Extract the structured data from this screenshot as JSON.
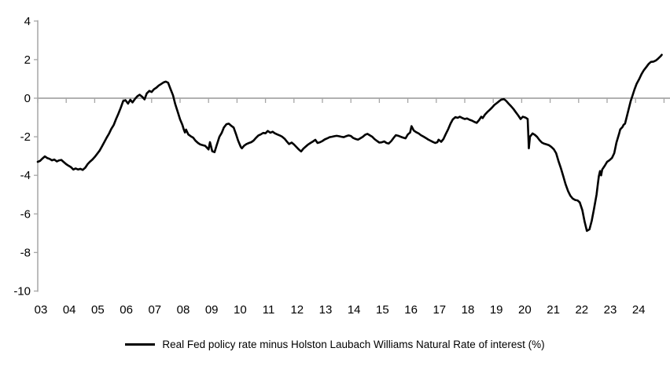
{
  "chart_data": {
    "type": "line",
    "title": "",
    "legend_position": "bottom",
    "grid": "zero-line-only",
    "axis_color": "#a6a6a6",
    "text_color": "#000000",
    "background_color": "#ffffff",
    "x_axis": {
      "tick_labels": [
        "03",
        "04",
        "05",
        "06",
        "07",
        "08",
        "09",
        "10",
        "11",
        "12",
        "13",
        "14",
        "15",
        "16",
        "17",
        "18",
        "19",
        "20",
        "21",
        "22",
        "23",
        "24"
      ],
      "tick_years": [
        2003,
        2004,
        2005,
        2006,
        2007,
        2008,
        2009,
        2010,
        2011,
        2012,
        2013,
        2014,
        2015,
        2016,
        2017,
        2018,
        2019,
        2020,
        2021,
        2022,
        2023,
        2024
      ],
      "range": [
        2003,
        2025.2
      ]
    },
    "y_axis": {
      "ticks": [
        4,
        2,
        0,
        -2,
        -4,
        -6,
        -8,
        -10
      ],
      "range": [
        -10,
        4
      ]
    },
    "series": [
      {
        "name": "Real Fed policy rate minus Holston Laubach Williams Natural Rate of interest (%)",
        "color": "#000000",
        "points": [
          [
            2003.0,
            -3.3
          ],
          [
            2003.08,
            -3.25
          ],
          [
            2003.17,
            -3.12
          ],
          [
            2003.25,
            -3.02
          ],
          [
            2003.33,
            -3.1
          ],
          [
            2003.42,
            -3.15
          ],
          [
            2003.5,
            -3.22
          ],
          [
            2003.58,
            -3.18
          ],
          [
            2003.67,
            -3.28
          ],
          [
            2003.75,
            -3.22
          ],
          [
            2003.83,
            -3.2
          ],
          [
            2003.92,
            -3.32
          ],
          [
            2004.0,
            -3.42
          ],
          [
            2004.08,
            -3.5
          ],
          [
            2004.17,
            -3.58
          ],
          [
            2004.25,
            -3.7
          ],
          [
            2004.33,
            -3.64
          ],
          [
            2004.42,
            -3.7
          ],
          [
            2004.5,
            -3.66
          ],
          [
            2004.58,
            -3.72
          ],
          [
            2004.67,
            -3.6
          ],
          [
            2004.75,
            -3.42
          ],
          [
            2004.83,
            -3.3
          ],
          [
            2004.92,
            -3.18
          ],
          [
            2005.0,
            -3.05
          ],
          [
            2005.08,
            -2.9
          ],
          [
            2005.17,
            -2.72
          ],
          [
            2005.25,
            -2.52
          ],
          [
            2005.33,
            -2.3
          ],
          [
            2005.42,
            -2.05
          ],
          [
            2005.5,
            -1.85
          ],
          [
            2005.58,
            -1.6
          ],
          [
            2005.67,
            -1.38
          ],
          [
            2005.75,
            -1.08
          ],
          [
            2005.83,
            -0.82
          ],
          [
            2005.92,
            -0.48
          ],
          [
            2006.0,
            -0.15
          ],
          [
            2006.08,
            -0.1
          ],
          [
            2006.17,
            -0.28
          ],
          [
            2006.25,
            -0.08
          ],
          [
            2006.33,
            -0.22
          ],
          [
            2006.42,
            -0.03
          ],
          [
            2006.5,
            0.1
          ],
          [
            2006.58,
            0.18
          ],
          [
            2006.67,
            0.07
          ],
          [
            2006.75,
            -0.06
          ],
          [
            2006.83,
            0.25
          ],
          [
            2006.92,
            0.38
          ],
          [
            2007.0,
            0.32
          ],
          [
            2007.08,
            0.46
          ],
          [
            2007.17,
            0.55
          ],
          [
            2007.25,
            0.66
          ],
          [
            2007.33,
            0.73
          ],
          [
            2007.42,
            0.82
          ],
          [
            2007.5,
            0.86
          ],
          [
            2007.58,
            0.8
          ],
          [
            2007.67,
            0.45
          ],
          [
            2007.75,
            0.15
          ],
          [
            2007.83,
            -0.3
          ],
          [
            2007.92,
            -0.72
          ],
          [
            2008.0,
            -1.1
          ],
          [
            2008.08,
            -1.38
          ],
          [
            2008.13,
            -1.62
          ],
          [
            2008.17,
            -1.78
          ],
          [
            2008.21,
            -1.63
          ],
          [
            2008.29,
            -1.88
          ],
          [
            2008.38,
            -1.98
          ],
          [
            2008.46,
            -2.05
          ],
          [
            2008.54,
            -2.2
          ],
          [
            2008.63,
            -2.32
          ],
          [
            2008.71,
            -2.4
          ],
          [
            2008.79,
            -2.43
          ],
          [
            2008.88,
            -2.47
          ],
          [
            2008.96,
            -2.6
          ],
          [
            2009.0,
            -2.66
          ],
          [
            2009.05,
            -2.28
          ],
          [
            2009.13,
            -2.75
          ],
          [
            2009.21,
            -2.8
          ],
          [
            2009.29,
            -2.42
          ],
          [
            2009.38,
            -2.0
          ],
          [
            2009.46,
            -1.8
          ],
          [
            2009.54,
            -1.52
          ],
          [
            2009.63,
            -1.35
          ],
          [
            2009.71,
            -1.32
          ],
          [
            2009.79,
            -1.42
          ],
          [
            2009.88,
            -1.52
          ],
          [
            2009.96,
            -1.85
          ],
          [
            2010.04,
            -2.2
          ],
          [
            2010.13,
            -2.52
          ],
          [
            2010.17,
            -2.6
          ],
          [
            2010.25,
            -2.46
          ],
          [
            2010.33,
            -2.38
          ],
          [
            2010.42,
            -2.32
          ],
          [
            2010.5,
            -2.28
          ],
          [
            2010.58,
            -2.2
          ],
          [
            2010.67,
            -2.05
          ],
          [
            2010.75,
            -1.93
          ],
          [
            2010.83,
            -1.88
          ],
          [
            2010.92,
            -1.8
          ],
          [
            2011.0,
            -1.82
          ],
          [
            2011.08,
            -1.7
          ],
          [
            2011.17,
            -1.79
          ],
          [
            2011.25,
            -1.74
          ],
          [
            2011.33,
            -1.82
          ],
          [
            2011.42,
            -1.88
          ],
          [
            2011.5,
            -1.93
          ],
          [
            2011.58,
            -1.99
          ],
          [
            2011.67,
            -2.1
          ],
          [
            2011.75,
            -2.25
          ],
          [
            2011.83,
            -2.38
          ],
          [
            2011.92,
            -2.3
          ],
          [
            2012.0,
            -2.4
          ],
          [
            2012.08,
            -2.52
          ],
          [
            2012.17,
            -2.66
          ],
          [
            2012.25,
            -2.76
          ],
          [
            2012.33,
            -2.62
          ],
          [
            2012.42,
            -2.5
          ],
          [
            2012.5,
            -2.4
          ],
          [
            2012.58,
            -2.32
          ],
          [
            2012.67,
            -2.24
          ],
          [
            2012.75,
            -2.16
          ],
          [
            2012.83,
            -2.32
          ],
          [
            2012.92,
            -2.28
          ],
          [
            2013.0,
            -2.22
          ],
          [
            2013.08,
            -2.14
          ],
          [
            2013.17,
            -2.08
          ],
          [
            2013.25,
            -2.02
          ],
          [
            2013.33,
            -2.0
          ],
          [
            2013.42,
            -1.97
          ],
          [
            2013.5,
            -1.95
          ],
          [
            2013.58,
            -1.97
          ],
          [
            2013.67,
            -2.0
          ],
          [
            2013.75,
            -2.02
          ],
          [
            2013.83,
            -1.97
          ],
          [
            2013.92,
            -1.93
          ],
          [
            2014.0,
            -1.96
          ],
          [
            2014.08,
            -2.06
          ],
          [
            2014.17,
            -2.12
          ],
          [
            2014.25,
            -2.15
          ],
          [
            2014.33,
            -2.08
          ],
          [
            2014.42,
            -2.0
          ],
          [
            2014.5,
            -1.9
          ],
          [
            2014.58,
            -1.85
          ],
          [
            2014.67,
            -1.93
          ],
          [
            2014.75,
            -2.0
          ],
          [
            2014.83,
            -2.12
          ],
          [
            2014.92,
            -2.22
          ],
          [
            2015.0,
            -2.3
          ],
          [
            2015.08,
            -2.29
          ],
          [
            2015.17,
            -2.24
          ],
          [
            2015.25,
            -2.32
          ],
          [
            2015.33,
            -2.35
          ],
          [
            2015.42,
            -2.22
          ],
          [
            2015.5,
            -2.06
          ],
          [
            2015.58,
            -1.92
          ],
          [
            2015.67,
            -1.95
          ],
          [
            2015.75,
            -2.0
          ],
          [
            2015.83,
            -2.04
          ],
          [
            2015.92,
            -2.08
          ],
          [
            2016.0,
            -1.88
          ],
          [
            2016.08,
            -1.78
          ],
          [
            2016.13,
            -1.45
          ],
          [
            2016.21,
            -1.68
          ],
          [
            2016.29,
            -1.76
          ],
          [
            2016.38,
            -1.83
          ],
          [
            2016.46,
            -1.92
          ],
          [
            2016.54,
            -1.98
          ],
          [
            2016.63,
            -2.06
          ],
          [
            2016.71,
            -2.14
          ],
          [
            2016.79,
            -2.2
          ],
          [
            2016.88,
            -2.27
          ],
          [
            2016.96,
            -2.32
          ],
          [
            2017.04,
            -2.28
          ],
          [
            2017.08,
            -2.15
          ],
          [
            2017.17,
            -2.26
          ],
          [
            2017.25,
            -2.12
          ],
          [
            2017.33,
            -1.87
          ],
          [
            2017.42,
            -1.6
          ],
          [
            2017.5,
            -1.32
          ],
          [
            2017.58,
            -1.1
          ],
          [
            2017.67,
            -0.98
          ],
          [
            2017.75,
            -1.02
          ],
          [
            2017.83,
            -0.96
          ],
          [
            2017.92,
            -1.03
          ],
          [
            2018.0,
            -1.08
          ],
          [
            2018.08,
            -1.05
          ],
          [
            2018.17,
            -1.12
          ],
          [
            2018.25,
            -1.16
          ],
          [
            2018.33,
            -1.22
          ],
          [
            2018.42,
            -1.28
          ],
          [
            2018.5,
            -1.14
          ],
          [
            2018.58,
            -0.96
          ],
          [
            2018.63,
            -1.03
          ],
          [
            2018.71,
            -0.85
          ],
          [
            2018.79,
            -0.72
          ],
          [
            2018.88,
            -0.6
          ],
          [
            2018.96,
            -0.48
          ],
          [
            2019.04,
            -0.35
          ],
          [
            2019.13,
            -0.25
          ],
          [
            2019.21,
            -0.15
          ],
          [
            2019.29,
            -0.07
          ],
          [
            2019.38,
            -0.05
          ],
          [
            2019.46,
            -0.15
          ],
          [
            2019.54,
            -0.28
          ],
          [
            2019.63,
            -0.42
          ],
          [
            2019.71,
            -0.56
          ],
          [
            2019.79,
            -0.72
          ],
          [
            2019.88,
            -0.9
          ],
          [
            2019.96,
            -1.08
          ],
          [
            2020.04,
            -0.96
          ],
          [
            2020.13,
            -1.0
          ],
          [
            2020.21,
            -1.08
          ],
          [
            2020.25,
            -2.6
          ],
          [
            2020.29,
            -2.0
          ],
          [
            2020.38,
            -1.83
          ],
          [
            2020.46,
            -1.9
          ],
          [
            2020.54,
            -2.0
          ],
          [
            2020.63,
            -2.18
          ],
          [
            2020.71,
            -2.3
          ],
          [
            2020.79,
            -2.36
          ],
          [
            2020.88,
            -2.4
          ],
          [
            2020.96,
            -2.44
          ],
          [
            2021.04,
            -2.52
          ],
          [
            2021.13,
            -2.65
          ],
          [
            2021.21,
            -2.85
          ],
          [
            2021.29,
            -3.25
          ],
          [
            2021.38,
            -3.65
          ],
          [
            2021.46,
            -4.05
          ],
          [
            2021.54,
            -4.45
          ],
          [
            2021.63,
            -4.82
          ],
          [
            2021.71,
            -5.06
          ],
          [
            2021.79,
            -5.2
          ],
          [
            2021.88,
            -5.28
          ],
          [
            2021.96,
            -5.3
          ],
          [
            2022.04,
            -5.4
          ],
          [
            2022.13,
            -5.8
          ],
          [
            2022.21,
            -6.4
          ],
          [
            2022.29,
            -6.88
          ],
          [
            2022.38,
            -6.8
          ],
          [
            2022.46,
            -6.35
          ],
          [
            2022.54,
            -5.75
          ],
          [
            2022.63,
            -5.0
          ],
          [
            2022.67,
            -4.5
          ],
          [
            2022.71,
            -4.05
          ],
          [
            2022.75,
            -3.78
          ],
          [
            2022.79,
            -4.0
          ],
          [
            2022.83,
            -3.7
          ],
          [
            2022.92,
            -3.5
          ],
          [
            2023.0,
            -3.3
          ],
          [
            2023.08,
            -3.22
          ],
          [
            2023.17,
            -3.1
          ],
          [
            2023.25,
            -2.85
          ],
          [
            2023.33,
            -2.3
          ],
          [
            2023.42,
            -1.85
          ],
          [
            2023.46,
            -1.62
          ],
          [
            2023.54,
            -1.5
          ],
          [
            2023.58,
            -1.38
          ],
          [
            2023.63,
            -1.32
          ],
          [
            2023.71,
            -0.85
          ],
          [
            2023.79,
            -0.38
          ],
          [
            2023.83,
            -0.15
          ],
          [
            2023.88,
            0.08
          ],
          [
            2023.96,
            0.45
          ],
          [
            2024.04,
            0.75
          ],
          [
            2024.13,
            1.0
          ],
          [
            2024.21,
            1.25
          ],
          [
            2024.29,
            1.45
          ],
          [
            2024.38,
            1.62
          ],
          [
            2024.46,
            1.78
          ],
          [
            2024.54,
            1.88
          ],
          [
            2024.63,
            1.9
          ],
          [
            2024.71,
            1.95
          ],
          [
            2024.79,
            2.05
          ],
          [
            2024.88,
            2.18
          ],
          [
            2024.92,
            2.25
          ]
        ]
      }
    ]
  }
}
